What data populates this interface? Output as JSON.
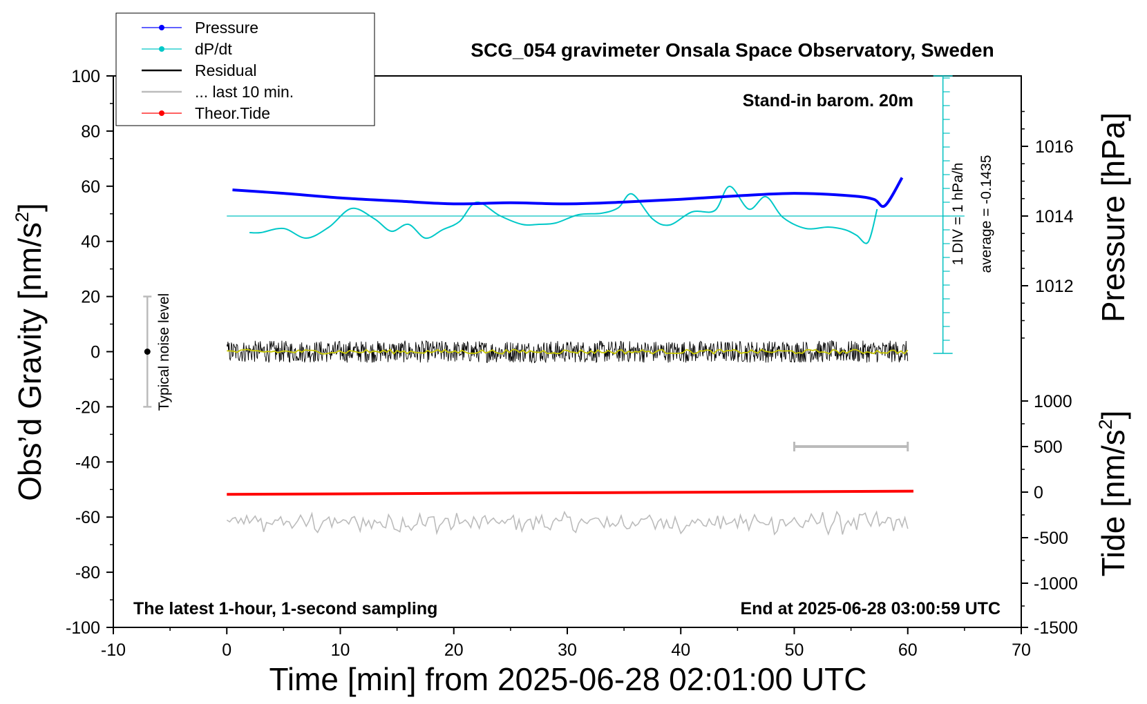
{
  "chart_data": {
    "type": "line",
    "title": "SCG_054 gravimeter Onsala Space Observatory, Sweden",
    "xlabel": "Time [min] from 2025-06-28 02:01:00 UTC",
    "ylabel_left": "Obs'd Gravity [nm/s²]",
    "ylabel_right_top": "Pressure [hPa]",
    "ylabel_right_bottom": "Tide [nm/s²]",
    "xlim": [
      -10,
      70
    ],
    "ylim_left": [
      -100,
      100
    ],
    "x_ticks": [
      -10,
      0,
      10,
      20,
      30,
      40,
      50,
      60,
      70
    ],
    "y_ticks_left": [
      -100,
      -80,
      -60,
      -40,
      -20,
      0,
      20,
      40,
      60,
      80,
      100
    ],
    "pressure_ticks": [
      1012,
      1014,
      1016
    ],
    "tide_ticks": [
      -1500,
      -1000,
      -500,
      0,
      500,
      1000
    ],
    "legend_position": "top-left",
    "legend": [
      {
        "label": "Pressure",
        "color": "#0000ff",
        "marker": true
      },
      {
        "label": "dP/dt",
        "color": "#00c8c8",
        "marker": true
      },
      {
        "label": "Residual",
        "color": "#000000",
        "marker": false
      },
      {
        "label": "... last 10 min.",
        "color": "#bbbbbb",
        "marker": false
      },
      {
        "label": "Theor.Tide",
        "color": "#ff0000",
        "marker": true
      }
    ],
    "annotations": {
      "barometer": "Stand-in barom. 20m",
      "sampling": "The latest 1-hour, 1-second sampling",
      "end_time": "End at 2025-06-28 03:00:59 UTC",
      "noise_label": "Typical noise level",
      "dpdt_scale": "1 DIV = 1 hPa/h",
      "dpdt_average": "average = -0.1435"
    },
    "noise_bar": {
      "x": -7,
      "center": 0,
      "range": [
        -20,
        20
      ]
    },
    "scale_bar": {
      "x_range": [
        50,
        60
      ],
      "tide_value": 500
    },
    "series": [
      {
        "name": "Pressure",
        "axis": "pressure",
        "color": "#0000ff",
        "x": [
          0.5,
          5,
          10,
          15,
          20,
          25,
          30,
          35,
          40,
          45,
          50,
          55,
          57,
          58,
          59.5
        ],
        "y": [
          1014.75,
          1014.65,
          1014.52,
          1014.43,
          1014.35,
          1014.38,
          1014.35,
          1014.4,
          1014.48,
          1014.58,
          1014.65,
          1014.58,
          1014.48,
          1014.3,
          1015.1
        ]
      },
      {
        "name": "dP/dt",
        "axis": "dpdt",
        "color": "#00c8c8",
        "x": [
          2,
          3,
          5,
          7,
          9,
          11,
          13,
          14.5,
          16,
          17.5,
          19,
          20.5,
          22,
          24,
          26,
          27.5,
          29,
          31,
          33,
          34.5,
          35.7,
          37.5,
          39,
          41,
          43,
          44.3,
          46,
          47.5,
          49,
          51,
          53,
          54.5,
          55.5,
          56.5,
          57.3
        ],
        "y": [
          -1.2,
          -1.2,
          -0.9,
          -1.6,
          -0.8,
          0.55,
          -0.2,
          -1.1,
          -0.6,
          -1.6,
          -1.0,
          -0.4,
          1.0,
          0.05,
          -0.6,
          -0.6,
          -0.5,
          0.1,
          0.2,
          0.6,
          1.6,
          -0.2,
          -0.65,
          0.3,
          0.4,
          2.15,
          0.5,
          1.4,
          -0.1,
          -0.9,
          -0.8,
          -1.0,
          -1.4,
          -1.9,
          0.5
        ]
      },
      {
        "name": "Residual",
        "axis": "left",
        "color": "#000000",
        "x_range": [
          0,
          60
        ],
        "center": 0,
        "noise_amplitude": 4
      },
      {
        "name": "... last 10 min.",
        "axis": "left",
        "color": "#bbbbbb",
        "x_range": [
          0,
          60
        ],
        "center": -62,
        "noise_amplitude": 3
      },
      {
        "name": "Theor.Tide",
        "axis": "tide",
        "color": "#ff0000",
        "x": [
          0,
          60.5
        ],
        "y": [
          -25,
          10
        ]
      }
    ]
  }
}
